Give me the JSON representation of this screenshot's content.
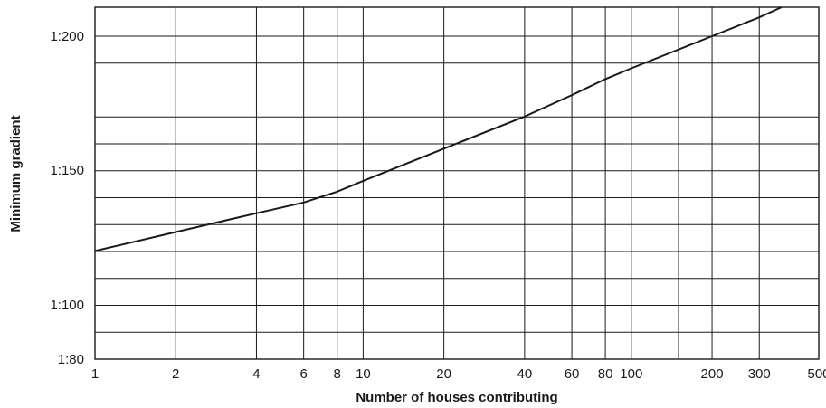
{
  "chart_data": {
    "type": "line",
    "xlabel": "Number of houses contributing",
    "ylabel": "Minimum gradient",
    "x_scale": "log",
    "xlim": [
      1,
      500
    ],
    "x_ticks": [
      1,
      2,
      4,
      6,
      8,
      10,
      20,
      40,
      60,
      80,
      100,
      200,
      300,
      500
    ],
    "x_tick_labels": [
      "1",
      "2",
      "4",
      "6",
      "8",
      "10",
      "20",
      "40",
      "60",
      "80",
      "100",
      "200",
      "300",
      "500"
    ],
    "x_gridlines": [
      2,
      4,
      6,
      8,
      10,
      20,
      40,
      60,
      80,
      100,
      150,
      200,
      300
    ],
    "y_ticks": [
      "1:80",
      "1:100",
      "1:150",
      "1:200"
    ],
    "grid": true,
    "series": [
      {
        "x": [
          1,
          2,
          4,
          6,
          8,
          10,
          20,
          40,
          60,
          80,
          100,
          200,
          300,
          450
        ],
        "y": [
          "1:120",
          "1:127",
          "1:134",
          "1:138",
          "1:142",
          "1:146",
          "1:158",
          "1:170",
          "1:178",
          "1:184",
          "1:188",
          "1:200",
          "1:207",
          "1:215"
        ]
      }
    ]
  }
}
